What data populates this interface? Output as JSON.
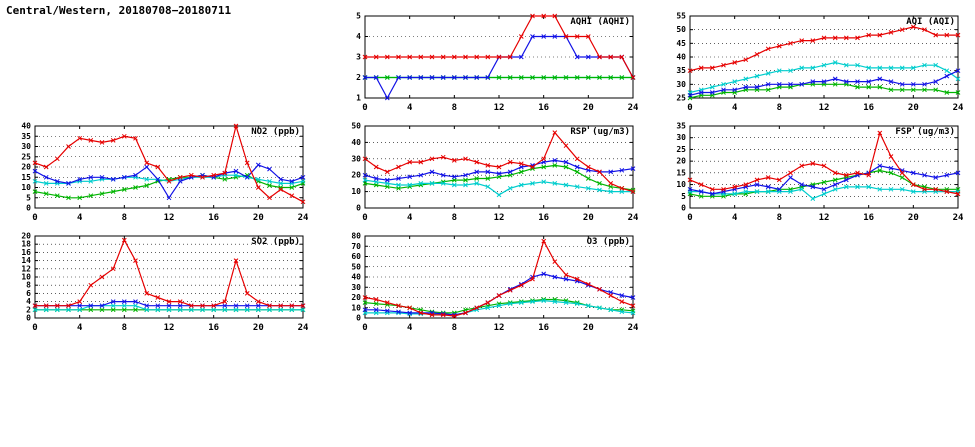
{
  "page_title": "Central/Western, 20180708−20180711",
  "colors": {
    "red": "#e60000",
    "blue": "#1212e6",
    "green": "#00b400",
    "cyan": "#00cdcd"
  },
  "hours": [
    0,
    1,
    2,
    3,
    4,
    5,
    6,
    7,
    8,
    9,
    10,
    11,
    12,
    13,
    14,
    15,
    16,
    17,
    18,
    19,
    20,
    21,
    22,
    23,
    24
  ],
  "chart_data": [
    {
      "id": "aqhi",
      "type": "line",
      "title": "AQHI (AQHI)",
      "xlabel": "",
      "ylabel": "",
      "xlim": [
        0,
        24
      ],
      "xticks": [
        0,
        4,
        8,
        12,
        16,
        20,
        24
      ],
      "ylim": [
        1,
        5
      ],
      "yticks": [
        1,
        2,
        3,
        4,
        5
      ],
      "grid": "horizontal-dotted",
      "legend": "none",
      "series": [
        {
          "name": "cyan",
          "color": "cyan",
          "values": [
            2,
            2,
            2,
            2,
            2,
            2,
            2,
            2,
            2,
            2,
            2,
            2,
            2,
            2,
            2,
            2,
            2,
            2,
            2,
            2,
            2,
            2,
            2,
            2,
            2
          ]
        },
        {
          "name": "green",
          "color": "green",
          "values": [
            2,
            2,
            2,
            2,
            2,
            2,
            2,
            2,
            2,
            2,
            2,
            2,
            2,
            2,
            2,
            2,
            2,
            2,
            2,
            2,
            2,
            2,
            2,
            2,
            2
          ]
        },
        {
          "name": "blue",
          "color": "blue",
          "values": [
            2,
            2,
            1,
            2,
            2,
            2,
            2,
            2,
            2,
            2,
            2,
            2,
            3,
            3,
            3,
            4,
            4,
            4,
            4,
            3,
            3,
            3,
            3,
            3,
            2
          ]
        },
        {
          "name": "red",
          "color": "red",
          "values": [
            3,
            3,
            3,
            3,
            3,
            3,
            3,
            3,
            3,
            3,
            3,
            3,
            3,
            3,
            4,
            5,
            5,
            5,
            4,
            4,
            4,
            3,
            3,
            3,
            2
          ]
        }
      ]
    },
    {
      "id": "aqi",
      "type": "line",
      "title": "AQI (AQI)",
      "xlabel": "",
      "ylabel": "",
      "xlim": [
        0,
        24
      ],
      "xticks": [
        0,
        4,
        8,
        12,
        16,
        20,
        24
      ],
      "ylim": [
        25,
        55
      ],
      "yticks": [
        25,
        30,
        35,
        40,
        45,
        50,
        55
      ],
      "grid": "horizontal-dotted",
      "legend": "none",
      "series": [
        {
          "name": "green",
          "color": "green",
          "values": [
            25,
            26,
            26,
            27,
            27,
            28,
            28,
            28,
            29,
            29,
            30,
            30,
            30,
            30,
            30,
            29,
            29,
            29,
            28,
            28,
            28,
            28,
            28,
            27,
            27
          ]
        },
        {
          "name": "cyan",
          "color": "cyan",
          "values": [
            27,
            28,
            29,
            30,
            31,
            32,
            33,
            34,
            35,
            35,
            36,
            36,
            37,
            38,
            37,
            37,
            36,
            36,
            36,
            36,
            36,
            37,
            37,
            35,
            32
          ]
        },
        {
          "name": "blue",
          "color": "blue",
          "values": [
            26,
            27,
            27,
            28,
            28,
            29,
            29,
            30,
            30,
            30,
            30,
            31,
            31,
            32,
            31,
            31,
            31,
            32,
            31,
            30,
            30,
            30,
            31,
            33,
            35
          ]
        },
        {
          "name": "red",
          "color": "red",
          "values": [
            35,
            36,
            36,
            37,
            38,
            39,
            41,
            43,
            44,
            45,
            46,
            46,
            47,
            47,
            47,
            47,
            48,
            48,
            49,
            50,
            51,
            50,
            48,
            48,
            48
          ]
        }
      ]
    },
    {
      "id": "no2",
      "type": "line",
      "title": "NO2 (ppb)",
      "xlabel": "",
      "ylabel": "",
      "xlim": [
        0,
        24
      ],
      "xticks": [
        0,
        4,
        8,
        12,
        16,
        20,
        24
      ],
      "ylim": [
        0,
        40
      ],
      "yticks": [
        0,
        5,
        10,
        15,
        20,
        25,
        30,
        35,
        40
      ],
      "grid": "horizontal-dotted",
      "legend": "none",
      "series": [
        {
          "name": "green",
          "color": "green",
          "values": [
            8,
            7,
            6,
            5,
            5,
            6,
            7,
            8,
            9,
            10,
            11,
            13,
            14,
            15,
            15,
            16,
            15,
            14,
            15,
            16,
            13,
            11,
            10,
            10,
            12
          ]
        },
        {
          "name": "cyan",
          "color": "cyan",
          "values": [
            13,
            12,
            12,
            12,
            13,
            13,
            14,
            14,
            15,
            15,
            14,
            14,
            13,
            14,
            15,
            15,
            15,
            16,
            16,
            15,
            14,
            13,
            12,
            12,
            13
          ]
        },
        {
          "name": "blue",
          "color": "blue",
          "values": [
            18,
            15,
            13,
            12,
            14,
            15,
            15,
            14,
            15,
            16,
            20,
            14,
            5,
            13,
            15,
            16,
            15,
            17,
            18,
            15,
            21,
            19,
            14,
            13,
            15
          ]
        },
        {
          "name": "red",
          "color": "red",
          "values": [
            22,
            20,
            24,
            30,
            34,
            33,
            32,
            33,
            35,
            34,
            22,
            20,
            13,
            15,
            16,
            15,
            16,
            17,
            40,
            22,
            10,
            5,
            9,
            6,
            3
          ]
        }
      ]
    },
    {
      "id": "rsp",
      "type": "line",
      "title": "RSP (ug/m3)",
      "xlabel": "",
      "ylabel": "",
      "xlim": [
        0,
        24
      ],
      "xticks": [
        0,
        4,
        8,
        12,
        16,
        20,
        24
      ],
      "ylim": [
        0,
        50
      ],
      "yticks": [
        0,
        10,
        20,
        30,
        40,
        50
      ],
      "grid": "horizontal-dotted",
      "legend": "none",
      "series": [
        {
          "name": "green",
          "color": "green",
          "values": [
            15,
            14,
            13,
            12,
            13,
            14,
            15,
            16,
            17,
            17,
            18,
            18,
            19,
            20,
            22,
            24,
            25,
            26,
            25,
            22,
            18,
            15,
            13,
            12,
            11
          ]
        },
        {
          "name": "cyan",
          "color": "cyan",
          "values": [
            17,
            16,
            15,
            14,
            14,
            15,
            15,
            15,
            14,
            14,
            15,
            13,
            8,
            12,
            14,
            15,
            16,
            15,
            14,
            13,
            12,
            11,
            10,
            10,
            10
          ]
        },
        {
          "name": "blue",
          "color": "blue",
          "values": [
            20,
            18,
            17,
            18,
            19,
            20,
            22,
            20,
            19,
            20,
            22,
            22,
            21,
            22,
            25,
            26,
            28,
            29,
            28,
            25,
            23,
            22,
            22,
            23,
            24
          ]
        },
        {
          "name": "red",
          "color": "red",
          "values": [
            30,
            25,
            22,
            25,
            28,
            28,
            30,
            31,
            29,
            30,
            28,
            26,
            25,
            28,
            27,
            25,
            30,
            46,
            38,
            30,
            25,
            22,
            15,
            12,
            10
          ]
        }
      ]
    },
    {
      "id": "fsp",
      "type": "line",
      "title": "FSP (ug/m3)",
      "xlabel": "",
      "ylabel": "",
      "xlim": [
        0,
        24
      ],
      "xticks": [
        0,
        4,
        8,
        12,
        16,
        20,
        24
      ],
      "ylim": [
        0,
        35
      ],
      "yticks": [
        0,
        5,
        10,
        15,
        20,
        25,
        30,
        35
      ],
      "grid": "horizontal-dotted",
      "legend": "none",
      "series": [
        {
          "name": "green",
          "color": "green",
          "values": [
            6,
            5,
            5,
            5,
            6,
            6,
            7,
            7,
            8,
            8,
            9,
            10,
            11,
            12,
            13,
            14,
            15,
            16,
            15,
            13,
            10,
            9,
            8,
            8,
            8
          ]
        },
        {
          "name": "cyan",
          "color": "cyan",
          "values": [
            7,
            7,
            6,
            6,
            6,
            7,
            7,
            7,
            7,
            7,
            8,
            4,
            6,
            8,
            9,
            9,
            9,
            8,
            8,
            8,
            7,
            7,
            7,
            7,
            7
          ]
        },
        {
          "name": "blue",
          "color": "blue",
          "values": [
            8,
            7,
            6,
            7,
            8,
            9,
            10,
            9,
            8,
            13,
            10,
            9,
            8,
            10,
            12,
            14,
            15,
            18,
            17,
            16,
            15,
            14,
            13,
            14,
            15
          ]
        },
        {
          "name": "red",
          "color": "red",
          "values": [
            12,
            10,
            8,
            8,
            9,
            10,
            12,
            13,
            12,
            15,
            18,
            19,
            18,
            15,
            14,
            15,
            14,
            32,
            22,
            15,
            10,
            8,
            8,
            7,
            6
          ]
        }
      ]
    },
    {
      "id": "so2",
      "type": "line",
      "title": "SO2 (ppb)",
      "xlabel": "",
      "ylabel": "",
      "xlim": [
        0,
        24
      ],
      "xticks": [
        0,
        4,
        8,
        12,
        16,
        20,
        24
      ],
      "ylim": [
        0,
        20
      ],
      "yticks": [
        0,
        2,
        4,
        6,
        8,
        10,
        12,
        14,
        16,
        18,
        20
      ],
      "grid": "horizontal-dotted",
      "legend": "none",
      "series": [
        {
          "name": "green",
          "color": "green",
          "values": [
            2,
            2,
            2,
            2,
            2,
            2,
            2,
            2,
            2,
            2,
            2,
            2,
            2,
            2,
            2,
            2,
            2,
            2,
            2,
            2,
            2,
            2,
            2,
            2,
            2
          ]
        },
        {
          "name": "cyan",
          "color": "cyan",
          "values": [
            2,
            2,
            2,
            2,
            2,
            3,
            3,
            3,
            3,
            3,
            2,
            2,
            2,
            2,
            2,
            2,
            2,
            2,
            2,
            2,
            2,
            2,
            2,
            2,
            2
          ]
        },
        {
          "name": "blue",
          "color": "blue",
          "values": [
            3,
            3,
            3,
            3,
            3,
            3,
            3,
            4,
            4,
            4,
            3,
            3,
            3,
            3,
            3,
            3,
            3,
            3,
            3,
            3,
            3,
            3,
            3,
            3,
            3
          ]
        },
        {
          "name": "red",
          "color": "red",
          "values": [
            3,
            3,
            3,
            3,
            4,
            8,
            10,
            12,
            19,
            14,
            6,
            5,
            4,
            4,
            3,
            3,
            3,
            4,
            14,
            6,
            4,
            3,
            3,
            3,
            3
          ]
        }
      ]
    },
    {
      "id": "o3",
      "type": "line",
      "title": "O3 (ppb)",
      "xlabel": "",
      "ylabel": "",
      "xlim": [
        0,
        24
      ],
      "xticks": [
        0,
        4,
        8,
        12,
        16,
        20,
        24
      ],
      "ylim": [
        0,
        80
      ],
      "yticks": [
        0,
        10,
        20,
        30,
        40,
        50,
        60,
        70,
        80
      ],
      "grid": "horizontal-dotted",
      "legend": "none",
      "series": [
        {
          "name": "green",
          "color": "green",
          "values": [
            15,
            14,
            13,
            12,
            10,
            8,
            6,
            5,
            5,
            8,
            10,
            12,
            14,
            15,
            16,
            17,
            18,
            18,
            17,
            15,
            12,
            10,
            8,
            8,
            7
          ]
        },
        {
          "name": "cyan",
          "color": "cyan",
          "values": [
            5,
            5,
            5,
            5,
            4,
            4,
            4,
            4,
            3,
            5,
            8,
            10,
            12,
            14,
            15,
            16,
            17,
            16,
            15,
            14,
            12,
            10,
            8,
            6,
            5
          ]
        },
        {
          "name": "blue",
          "color": "blue",
          "values": [
            8,
            8,
            7,
            6,
            5,
            5,
            5,
            4,
            3,
            5,
            10,
            15,
            22,
            28,
            33,
            40,
            43,
            40,
            38,
            36,
            32,
            28,
            25,
            22,
            20
          ]
        },
        {
          "name": "red",
          "color": "red",
          "values": [
            20,
            18,
            15,
            12,
            10,
            5,
            3,
            3,
            2,
            5,
            10,
            15,
            22,
            27,
            32,
            38,
            75,
            55,
            42,
            38,
            33,
            28,
            22,
            16,
            12
          ]
        }
      ]
    }
  ]
}
